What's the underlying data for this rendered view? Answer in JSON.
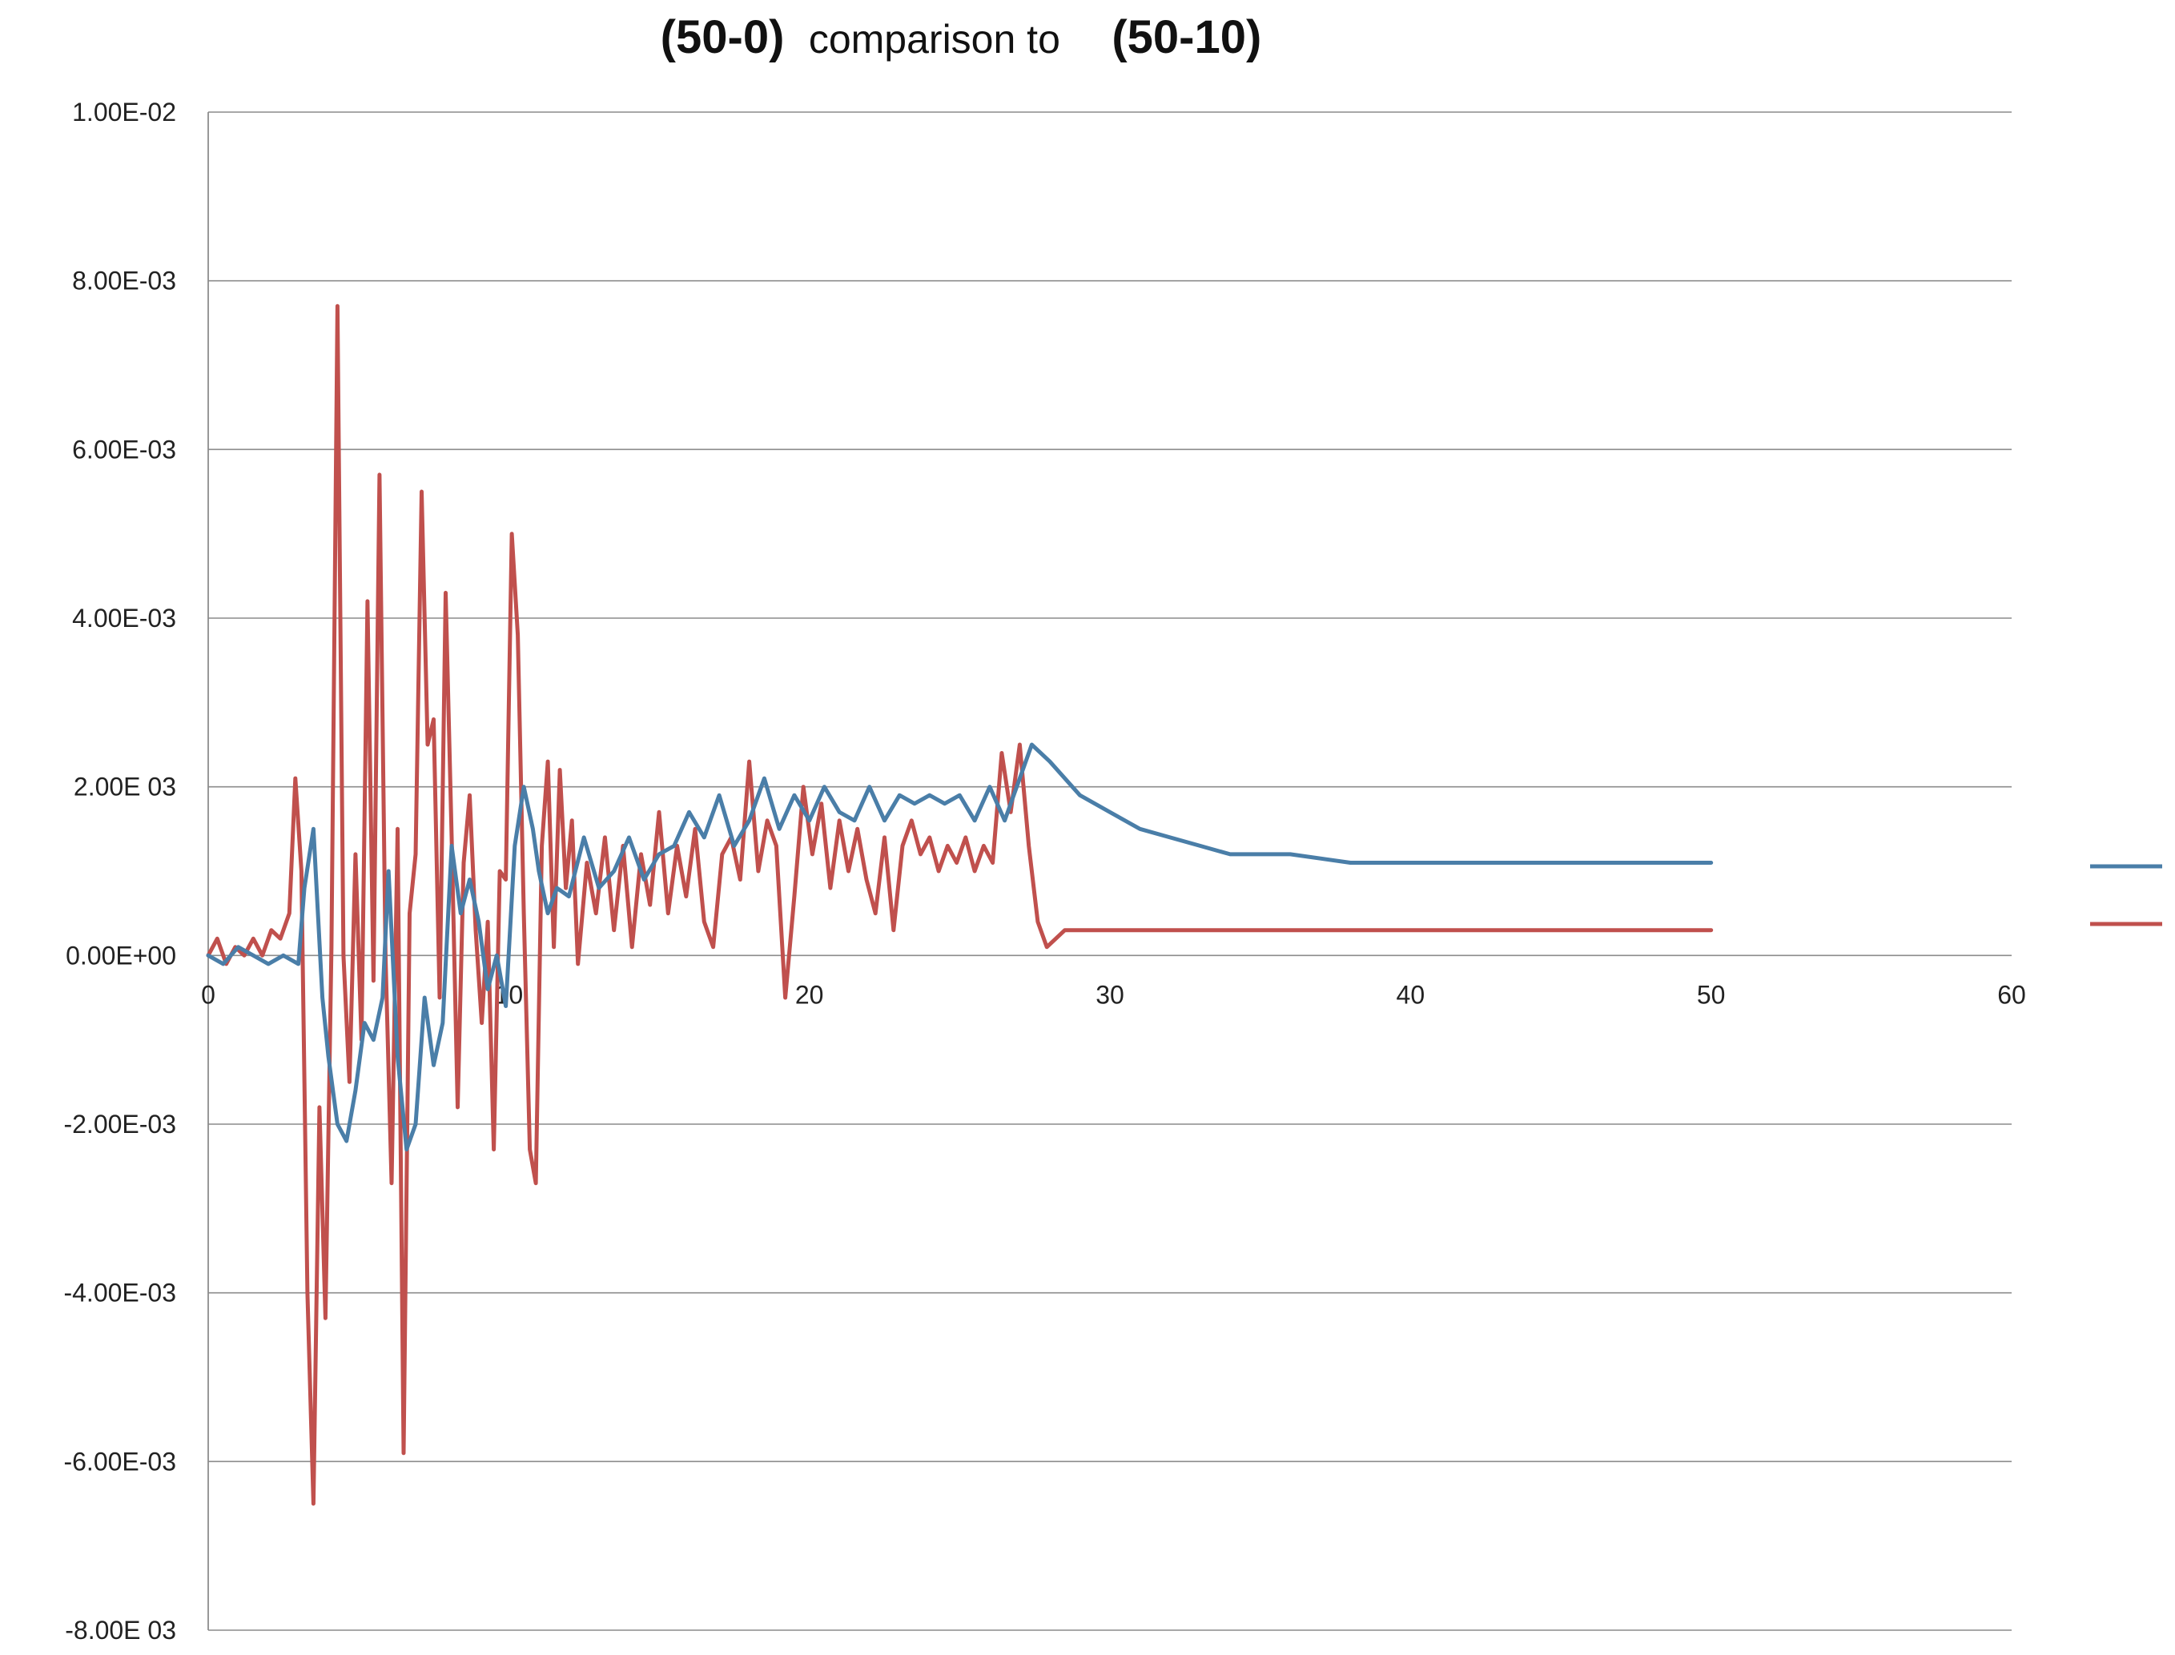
{
  "chart_data": {
    "type": "line",
    "title": {
      "part1": "(50-0)",
      "part2": "comparison to",
      "part3": "(50-10)"
    },
    "xlabel": "",
    "ylabel": "",
    "xlim": [
      0,
      60
    ],
    "ylim": [
      -0.008,
      0.01
    ],
    "x_ticks": [
      0,
      10,
      20,
      30,
      40,
      50,
      60
    ],
    "x_tick_labels": [
      "0",
      "10",
      "20",
      "30",
      "40",
      "50",
      "60"
    ],
    "y_ticks": [
      0.01,
      0.008,
      0.006,
      0.004,
      0.002,
      0.0,
      -0.002,
      -0.004,
      -0.006,
      -0.008
    ],
    "y_tick_labels": [
      "1.00E-02",
      "8.00E-03",
      "6.00E-03",
      "4.00E-03",
      "2.00E 03",
      "0.00E+00",
      "-2.00E-03",
      "-4.00E-03",
      "-6.00E-03",
      "-8.00E 03"
    ],
    "grid": true,
    "legend_position": "right",
    "series": [
      {
        "name": "",
        "color": "#4a7ea8",
        "x": [
          0,
          0.5,
          1,
          1.5,
          2,
          2.5,
          3,
          3.2,
          3.5,
          3.8,
          4,
          4.3,
          4.6,
          4.9,
          5.2,
          5.5,
          5.8,
          6,
          6.3,
          6.6,
          6.9,
          7.2,
          7.5,
          7.8,
          8.1,
          8.4,
          8.7,
          9,
          9.3,
          9.6,
          9.9,
          10.2,
          10.5,
          10.8,
          11,
          11.3,
          11.6,
          12,
          12.5,
          13,
          13.5,
          14,
          14.5,
          15,
          15.5,
          16,
          16.5,
          17,
          17.5,
          18,
          18.5,
          19,
          19.5,
          20,
          20.5,
          21,
          21.5,
          22,
          22.5,
          23,
          23.5,
          24,
          24.5,
          25,
          25.5,
          26,
          26.5,
          27,
          27.4,
          28,
          29,
          30,
          31,
          32,
          33,
          34,
          35,
          36,
          38,
          40,
          42,
          44,
          46,
          48,
          50
        ],
        "values": [
          0.0,
          -0.0001,
          0.0001,
          0.0,
          -0.0001,
          0.0,
          -0.0001,
          0.0008,
          0.0015,
          -0.0005,
          -0.0012,
          -0.002,
          -0.0022,
          -0.0016,
          -0.0008,
          -0.001,
          -0.0005,
          0.001,
          -0.0012,
          -0.0023,
          -0.002,
          -0.0005,
          -0.0013,
          -0.0008,
          0.0013,
          0.0005,
          0.0009,
          0.0004,
          -0.0004,
          0.0,
          -0.0006,
          0.0013,
          0.002,
          0.0015,
          0.001,
          0.0005,
          0.0008,
          0.0007,
          0.0014,
          0.0008,
          0.001,
          0.0014,
          0.0009,
          0.0012,
          0.0013,
          0.0017,
          0.0014,
          0.0019,
          0.0013,
          0.0016,
          0.0021,
          0.0015,
          0.0019,
          0.0016,
          0.002,
          0.0017,
          0.0016,
          0.002,
          0.0016,
          0.0019,
          0.0018,
          0.0019,
          0.0018,
          0.0019,
          0.0016,
          0.002,
          0.0016,
          0.0021,
          0.0025,
          0.0023,
          0.0019,
          0.0017,
          0.0015,
          0.0014,
          0.0013,
          0.0012,
          0.0012,
          0.0012,
          0.0011,
          0.0011,
          0.0011,
          0.0011,
          0.0011,
          0.0011,
          0.0011
        ]
      },
      {
        "name": "",
        "color": "#c0504d",
        "x": [
          0,
          0.3,
          0.6,
          0.9,
          1.2,
          1.5,
          1.8,
          2.1,
          2.4,
          2.7,
          2.9,
          3.1,
          3.3,
          3.5,
          3.7,
          3.9,
          4.1,
          4.3,
          4.5,
          4.7,
          4.9,
          5.1,
          5.3,
          5.5,
          5.7,
          5.9,
          6.1,
          6.3,
          6.5,
          6.7,
          6.9,
          7.1,
          7.3,
          7.5,
          7.7,
          7.9,
          8.1,
          8.3,
          8.5,
          8.7,
          8.9,
          9.1,
          9.3,
          9.5,
          9.7,
          9.9,
          10.1,
          10.3,
          10.5,
          10.7,
          10.9,
          11.1,
          11.3,
          11.5,
          11.7,
          11.9,
          12.1,
          12.3,
          12.6,
          12.9,
          13.2,
          13.5,
          13.8,
          14.1,
          14.4,
          14.7,
          15,
          15.3,
          15.6,
          15.9,
          16.2,
          16.5,
          16.8,
          17.1,
          17.4,
          17.7,
          18,
          18.3,
          18.6,
          18.9,
          19.2,
          19.5,
          19.8,
          20.1,
          20.4,
          20.7,
          21,
          21.3,
          21.6,
          21.9,
          22.2,
          22.5,
          22.8,
          23.1,
          23.4,
          23.7,
          24,
          24.3,
          24.6,
          24.9,
          25.2,
          25.5,
          25.8,
          26.1,
          26.4,
          26.7,
          27,
          27.3,
          27.6,
          27.9,
          28.2,
          28.5,
          29,
          30,
          35,
          40,
          45,
          50
        ],
        "values": [
          0.0,
          0.0002,
          -0.0001,
          0.0001,
          0.0,
          0.0002,
          0.0,
          0.0003,
          0.0002,
          0.0005,
          0.0021,
          0.001,
          -0.004,
          -0.0065,
          -0.0018,
          -0.0043,
          0.0001,
          0.0077,
          0.0,
          -0.0015,
          0.0012,
          -0.001,
          0.0042,
          -0.0003,
          0.0057,
          0.0,
          -0.0027,
          0.0015,
          -0.0059,
          0.0005,
          0.0012,
          0.0055,
          0.0025,
          0.0028,
          -0.0005,
          0.0043,
          0.0014,
          -0.0018,
          0.0011,
          0.0019,
          0.0003,
          -0.0008,
          0.0004,
          -0.0023,
          0.001,
          0.0009,
          0.005,
          0.0038,
          0.0005,
          -0.0023,
          -0.0027,
          0.0013,
          0.0023,
          0.0001,
          0.0022,
          0.0008,
          0.0016,
          -0.0001,
          0.0011,
          0.0005,
          0.0014,
          0.0003,
          0.0013,
          0.0001,
          0.0012,
          0.0006,
          0.0017,
          0.0005,
          0.0013,
          0.0007,
          0.0015,
          0.0004,
          0.0001,
          0.0012,
          0.0014,
          0.0009,
          0.0023,
          0.001,
          0.0016,
          0.0013,
          -0.0005,
          0.0007,
          0.002,
          0.0012,
          0.0018,
          0.0008,
          0.0016,
          0.001,
          0.0015,
          0.0009,
          0.0005,
          0.0014,
          0.0003,
          0.0013,
          0.0016,
          0.0012,
          0.0014,
          0.001,
          0.0013,
          0.0011,
          0.0014,
          0.001,
          0.0013,
          0.0011,
          0.0024,
          0.0017,
          0.0025,
          0.0013,
          0.0004,
          0.0001,
          0.0002,
          0.0003,
          0.0003,
          0.0003,
          0.0003,
          0.0003,
          0.0003,
          0.0003
        ]
      }
    ]
  }
}
